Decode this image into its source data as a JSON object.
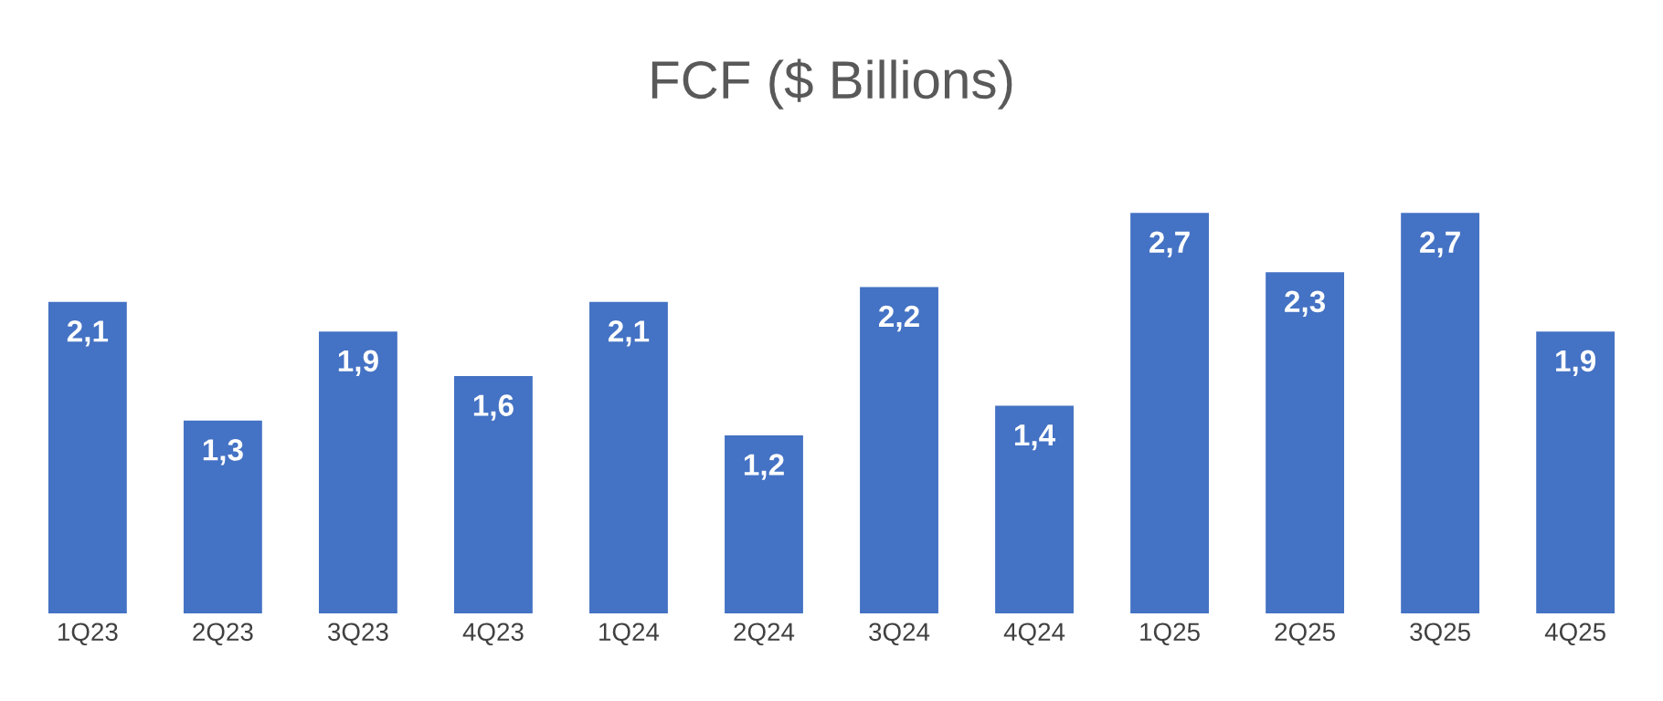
{
  "chart_data": {
    "type": "bar",
    "title": "FCF ($ Billions)",
    "categories": [
      "1Q23",
      "2Q23",
      "3Q23",
      "4Q23",
      "1Q24",
      "2Q24",
      "3Q24",
      "4Q24",
      "1Q25",
      "2Q25",
      "3Q25",
      "4Q25"
    ],
    "values": [
      2.1,
      1.3,
      1.9,
      1.6,
      2.1,
      1.2,
      2.2,
      1.4,
      2.7,
      2.3,
      2.7,
      1.9
    ],
    "value_labels": [
      "2,1",
      "1,3",
      "1,9",
      "1,6",
      "2,1",
      "1,2",
      "2,2",
      "1,4",
      "2,7",
      "2,3",
      "2,7",
      "1,9"
    ],
    "color": "#4472c4",
    "grid": false,
    "legend": false
  }
}
